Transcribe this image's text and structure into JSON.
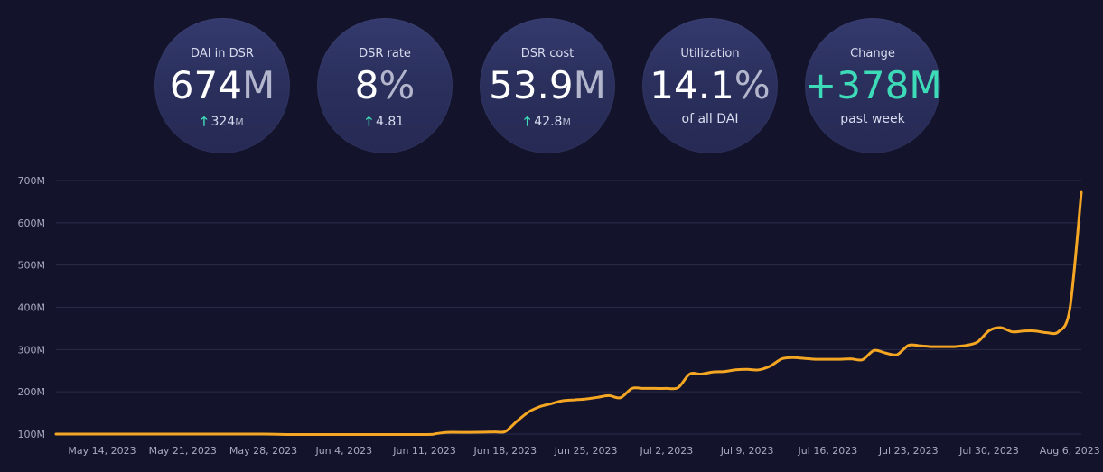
{
  "stats": [
    {
      "label": "DAI in DSR",
      "value": "674",
      "unit": "M",
      "arrow": "🡑",
      "sub": "324",
      "sub_unit": "M"
    },
    {
      "label": "DSR rate",
      "value": "8",
      "unit": "%",
      "arrow": "🡑",
      "sub": "4.81",
      "sub_unit": ""
    },
    {
      "label": "DSR cost",
      "value": "53.9",
      "unit": "M",
      "arrow": "🡑",
      "sub": "42.8",
      "sub_unit": "M"
    },
    {
      "label": "Utilization",
      "value": "14.1",
      "unit": "%",
      "sub_text": "of all DAI"
    },
    {
      "label": "Change",
      "value": "+378",
      "unit": "M",
      "sub_text": "past week"
    }
  ],
  "colors": {
    "line": "#f5a623",
    "accent": "#3ddbb7",
    "background": "#13132b"
  },
  "chart_data": {
    "type": "line",
    "y_ticks": [
      "100M",
      "200M",
      "300M",
      "400M",
      "500M",
      "600M",
      "700M"
    ],
    "y_tick_values": [
      100,
      200,
      300,
      400,
      500,
      600,
      700
    ],
    "ylim": [
      100,
      700
    ],
    "x_ticks": [
      "May 14, 2023",
      "May 21, 2023",
      "May 28, 2023",
      "Jun 4, 2023",
      "Jun 11, 2023",
      "Jun 18, 2023",
      "Jun 25, 2023",
      "Jul 2, 2023",
      "Jul 9, 2023",
      "Jul 16, 2023",
      "Jul 23, 2023",
      "Jul 30, 2023",
      "Aug 6, 2023"
    ],
    "grid": true,
    "series": [
      {
        "color": "#f5a623",
        "x": [
          "2023-05-10",
          "2023-05-14",
          "2023-05-21",
          "2023-05-28",
          "2023-05-30",
          "2023-06-04",
          "2023-06-11",
          "2023-06-12",
          "2023-06-13",
          "2023-06-15",
          "2023-06-17",
          "2023-06-18",
          "2023-06-19",
          "2023-06-20",
          "2023-06-21",
          "2023-06-22",
          "2023-06-23",
          "2023-06-24",
          "2023-06-25",
          "2023-06-26",
          "2023-06-27",
          "2023-06-28",
          "2023-06-29",
          "2023-06-30",
          "2023-07-01",
          "2023-07-02",
          "2023-07-03",
          "2023-07-04",
          "2023-07-05",
          "2023-07-06",
          "2023-07-07",
          "2023-07-08",
          "2023-07-09",
          "2023-07-10",
          "2023-07-11",
          "2023-07-12",
          "2023-07-13",
          "2023-07-14",
          "2023-07-15",
          "2023-07-16",
          "2023-07-17",
          "2023-07-18",
          "2023-07-19",
          "2023-07-20",
          "2023-07-21",
          "2023-07-22",
          "2023-07-23",
          "2023-07-24",
          "2023-07-25",
          "2023-07-26",
          "2023-07-27",
          "2023-07-28",
          "2023-07-29",
          "2023-07-30",
          "2023-07-31",
          "2023-08-01",
          "2023-08-02",
          "2023-08-03",
          "2023-08-04",
          "2023-08-05",
          "2023-08-06",
          "2023-08-07"
        ],
        "y": [
          100,
          100,
          100,
          100,
          99,
          99,
          99,
          101,
          104,
          104,
          105,
          106,
          130,
          152,
          165,
          172,
          179,
          181,
          183,
          187,
          191,
          186,
          208,
          208,
          208,
          208,
          210,
          242,
          242,
          247,
          248,
          252,
          253,
          252,
          261,
          278,
          281,
          279,
          277,
          277,
          277,
          278,
          276,
          298,
          292,
          288,
          310,
          309,
          307,
          307,
          307,
          310,
          318,
          345,
          352,
          342,
          344,
          344,
          340,
          342,
          395,
          672
        ]
      }
    ]
  }
}
